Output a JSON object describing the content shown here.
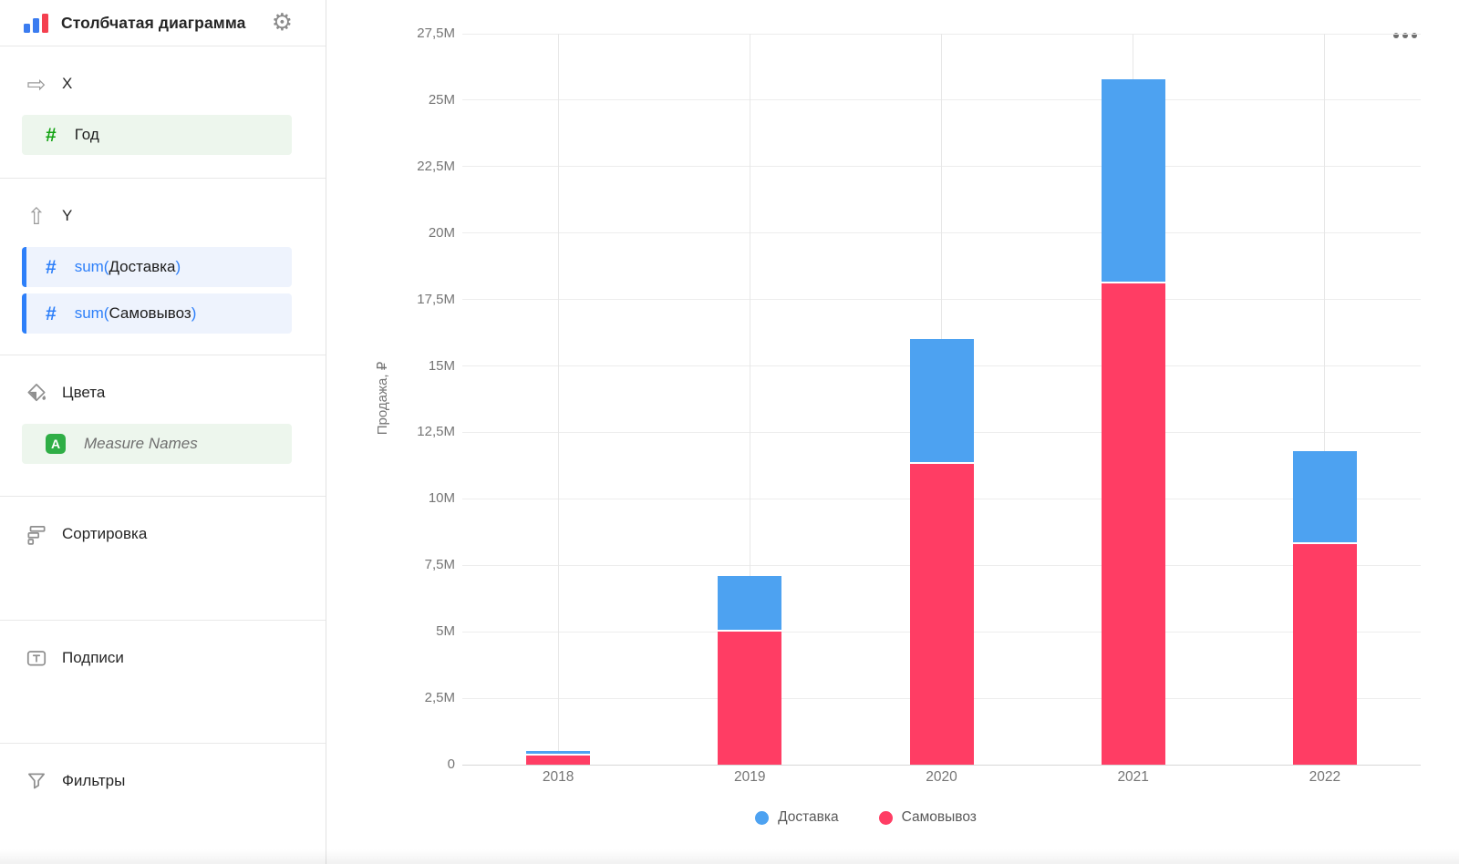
{
  "header": {
    "title": "Столбчатая диаграмма",
    "chart_type_icon": "bar-chart-icon",
    "settings_icon": "gear-icon",
    "settings_glyph": "⚙"
  },
  "sidebar": {
    "sections": [
      {
        "id": "x",
        "label": "X",
        "icon": "arrow-right-icon",
        "icon_glyph": "⇨",
        "fields": [
          {
            "icon": "number-hash-icon",
            "accent": "green",
            "text": "Год"
          }
        ]
      },
      {
        "id": "y",
        "label": "Y",
        "icon": "arrow-up-icon",
        "icon_glyph": "⇧",
        "fields": [
          {
            "icon": "number-hash-icon",
            "accent": "blue",
            "prefix": "sum(",
            "text": "Доставка",
            "suffix": ")"
          },
          {
            "icon": "number-hash-icon",
            "accent": "blue",
            "prefix": "sum(",
            "text": "Самовывоз",
            "suffix": ")"
          }
        ]
      },
      {
        "id": "colors",
        "label": "Цвета",
        "icon": "paint-bucket-icon",
        "fields": [
          {
            "icon": "letter-a-icon",
            "accent": "green",
            "text": "Measure Names",
            "italic": true
          }
        ]
      },
      {
        "id": "sort",
        "label": "Сортировка",
        "icon": "sort-bars-icon",
        "fields": []
      },
      {
        "id": "labels",
        "label": "Подписи",
        "icon": "text-label-icon",
        "fields": []
      },
      {
        "id": "filters",
        "label": "Фильтры",
        "icon": "funnel-icon",
        "fields": []
      }
    ]
  },
  "chart": {
    "menu_icon": "ellipsis-menu-icon"
  },
  "chart_data": {
    "type": "bar",
    "stacked": true,
    "title": "",
    "categories": [
      "2018",
      "2019",
      "2020",
      "2021",
      "2022"
    ],
    "series": [
      {
        "name": "Доставка",
        "color": "#4da2f1",
        "values_m": [
          0.17,
          2.1,
          4.7,
          7.7,
          3.5
        ]
      },
      {
        "name": "Самовывоз",
        "color": "#ff3d64",
        "values_m": [
          0.33,
          5.0,
          11.3,
          18.1,
          8.3
        ]
      }
    ],
    "stack_order_bottom_to_top": [
      "Самовывоз",
      "Доставка"
    ],
    "xlabel": "",
    "ylabel": "Продажа, ₽",
    "ylim_m": [
      0,
      27.5
    ],
    "yticks": [
      {
        "label": "0",
        "value_m": 0
      },
      {
        "label": "2,5M",
        "value_m": 2.5
      },
      {
        "label": "5M",
        "value_m": 5
      },
      {
        "label": "7,5M",
        "value_m": 7.5
      },
      {
        "label": "10M",
        "value_m": 10
      },
      {
        "label": "12,5M",
        "value_m": 12.5
      },
      {
        "label": "15M",
        "value_m": 15
      },
      {
        "label": "17,5M",
        "value_m": 17.5
      },
      {
        "label": "20M",
        "value_m": 20
      },
      {
        "label": "22,5M",
        "value_m": 22.5
      },
      {
        "label": "25M",
        "value_m": 25
      },
      {
        "label": "27,5M",
        "value_m": 27.5
      }
    ],
    "grid": true,
    "legend_position": "bottom",
    "units": "₽"
  }
}
